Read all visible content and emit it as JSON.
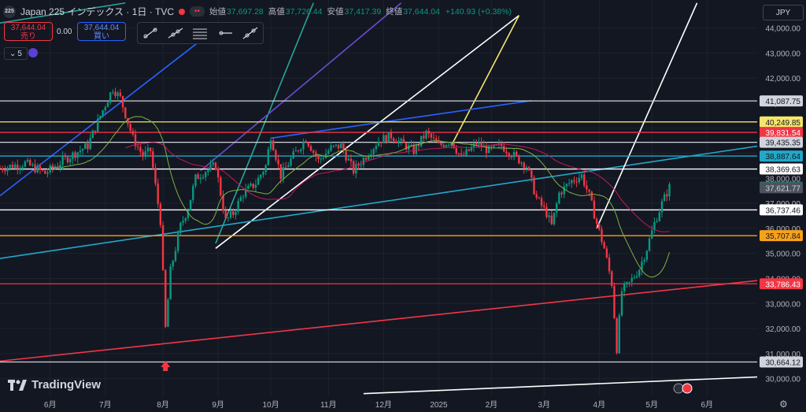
{
  "header": {
    "symbol_logo": "225",
    "title": "Japan 225 インデックス · 1日 · TVC",
    "pill": "••",
    "open_label": "始値",
    "open": "37,697.28",
    "high_label": "高値",
    "high": "37,726.44",
    "low_label": "安値",
    "low": "37,417.39",
    "close_label": "終値",
    "close": "37,644.04",
    "change": "+140.93 (+0.38%)"
  },
  "trade": {
    "sell_price": "37,644.04",
    "sell_label": "売り",
    "spread": "0.00",
    "buy_price": "37,644.04",
    "buy_label": "買い"
  },
  "indicator_count": "5",
  "currency": "JPY",
  "brand": "TradingView",
  "colors": {
    "bg": "#131722",
    "up": "#089981",
    "down": "#f23645",
    "grid": "#1e222d",
    "text": "#b2b5be"
  },
  "chart_data": {
    "type": "candlestick",
    "ylim": [
      29800,
      44300
    ],
    "y_ticks": [
      "44,000.00",
      "43,000.00",
      "42,000.00",
      "41,000.00",
      "40,000.00",
      "39,000.00",
      "38,000.00",
      "37,000.00",
      "36,000.00",
      "35,000.00",
      "34,000.00",
      "33,000.00",
      "32,000.00",
      "31,000.00",
      "30,000.00"
    ],
    "y_tick_values": [
      44000,
      43000,
      42000,
      41000,
      40000,
      39000,
      38000,
      37000,
      36000,
      35000,
      34000,
      33000,
      32000,
      31000,
      30000
    ],
    "x_labels": [
      "6月",
      "7月",
      "8月",
      "9月",
      "10月",
      "11月",
      "12月",
      "2025",
      "2月",
      "3月",
      "4月",
      "5月",
      "6月"
    ],
    "x_label_days": [
      0,
      22,
      45,
      67,
      88,
      111,
      133,
      155,
      176,
      197,
      219,
      240,
      262
    ],
    "day_range": [
      -20,
      282
    ],
    "horizontal_levels": [
      {
        "price": 41087.75,
        "label": "41,087.75",
        "color": "#d1d4dc",
        "text": "#131722"
      },
      {
        "price": 40249.85,
        "label": "40,249.85",
        "color": "#f5e56b",
        "text": "#131722"
      },
      {
        "price": 39831.54,
        "label": "39,831.54",
        "color": "#f23645",
        "text": "#ffffff"
      },
      {
        "price": 39435.35,
        "label": "39,435.35",
        "color": "#d1d4dc",
        "text": "#131722"
      },
      {
        "price": 38887.64,
        "label": "38,887.64",
        "color": "#22a8c9",
        "text": "#131722"
      },
      {
        "price": 38369.63,
        "label": "38,369.63",
        "color": "#ffffff",
        "text": "#131722"
      },
      {
        "price": 36737.46,
        "label": "36,737.46",
        "color": "#ffffff",
        "text": "#131722"
      },
      {
        "price": 35707.84,
        "label": "35,707.84",
        "color": "#f7a21b",
        "text": "#131722"
      },
      {
        "price": 33786.43,
        "label": "33,786.43",
        "color": "#f23645",
        "text": "#ffffff"
      },
      {
        "price": 30664.12,
        "label": "30,664.12",
        "color": "#d1d4dc",
        "text": "#131722"
      }
    ],
    "price_tags": [
      {
        "price": 37644.04,
        "label": "37,644.04",
        "color": "#089981",
        "text": "#ffffff"
      },
      {
        "price": 37621.77,
        "label": "37,621.77",
        "color": "#4c525e",
        "text": "#d1d4dc"
      }
    ],
    "close_path": [
      [
        -20,
        38400
      ],
      [
        -10,
        38600
      ],
      [
        -2,
        38200
      ],
      [
        5,
        38700
      ],
      [
        10,
        39000
      ],
      [
        15,
        39300
      ],
      [
        20,
        40500
      ],
      [
        25,
        41600
      ],
      [
        28,
        41200
      ],
      [
        33,
        39600
      ],
      [
        37,
        38900
      ],
      [
        40,
        39100
      ],
      [
        44,
        36300
      ],
      [
        46,
        32000
      ],
      [
        48,
        34300
      ],
      [
        52,
        36100
      ],
      [
        55,
        36800
      ],
      [
        58,
        38000
      ],
      [
        62,
        38300
      ],
      [
        66,
        38500
      ],
      [
        70,
        36300
      ],
      [
        73,
        36600
      ],
      [
        77,
        37400
      ],
      [
        82,
        37800
      ],
      [
        86,
        38500
      ],
      [
        88,
        39700
      ],
      [
        92,
        38100
      ],
      [
        97,
        38900
      ],
      [
        102,
        39600
      ],
      [
        107,
        38700
      ],
      [
        112,
        39200
      ],
      [
        116,
        39300
      ],
      [
        121,
        38300
      ],
      [
        126,
        38900
      ],
      [
        131,
        39500
      ],
      [
        136,
        39700
      ],
      [
        140,
        39400
      ],
      [
        145,
        39100
      ],
      [
        150,
        39800
      ],
      [
        155,
        39300
      ],
      [
        160,
        39500
      ],
      [
        164,
        38800
      ],
      [
        170,
        39400
      ],
      [
        175,
        39100
      ],
      [
        180,
        39300
      ],
      [
        185,
        38900
      ],
      [
        190,
        38500
      ],
      [
        194,
        37200
      ],
      [
        198,
        36600
      ],
      [
        200,
        36100
      ],
      [
        203,
        37400
      ],
      [
        208,
        37900
      ],
      [
        212,
        38100
      ],
      [
        215,
        37300
      ],
      [
        218,
        36200
      ],
      [
        221,
        35200
      ],
      [
        224,
        33800
      ],
      [
        226,
        31200
      ],
      [
        228,
        33500
      ],
      [
        231,
        33800
      ],
      [
        235,
        34400
      ],
      [
        238,
        35200
      ],
      [
        241,
        36200
      ],
      [
        244,
        37000
      ],
      [
        247,
        37644
      ]
    ],
    "yellow_line": [
      [
        104,
        40250
      ],
      [
        290,
        40250
      ]
    ],
    "diag_lines": [
      {
        "color": "#2962ff",
        "pts": [
          [
            -20,
            37300
          ],
          [
            60,
            43500
          ]
        ]
      },
      {
        "color": "#26a69a",
        "pts": [
          [
            66,
            35400
          ],
          [
            105,
            45000
          ]
        ]
      },
      {
        "color": "#6a4bcf",
        "pts": [
          [
            60,
            38300
          ],
          [
            140,
            45000
          ]
        ]
      },
      {
        "color": "#ffffff",
        "pts": [
          [
            66,
            35200
          ],
          [
            187,
            44500
          ]
        ]
      },
      {
        "color": "#f5e56b",
        "pts": [
          [
            160,
            39300
          ],
          [
            187,
            44500
          ]
        ]
      },
      {
        "color": "#22a8c9",
        "pts": [
          [
            -20,
            34800
          ],
          [
            290,
            39400
          ]
        ]
      },
      {
        "color": "#f23645",
        "pts": [
          [
            -20,
            30700
          ],
          [
            290,
            34000
          ]
        ]
      },
      {
        "color": "#2962ff",
        "pts": [
          [
            88,
            39600
          ],
          [
            192,
            41100
          ]
        ]
      },
      {
        "color": "#ffffff",
        "pts": [
          [
            218,
            36000
          ],
          [
            258,
            45000
          ]
        ]
      },
      {
        "color": "#ffffff",
        "pts": [
          [
            125,
            29400
          ],
          [
            290,
            30100
          ]
        ]
      },
      {
        "color": "#26a69a",
        "pts": [
          [
            -20,
            44200
          ],
          [
            30,
            45000
          ]
        ]
      }
    ]
  }
}
